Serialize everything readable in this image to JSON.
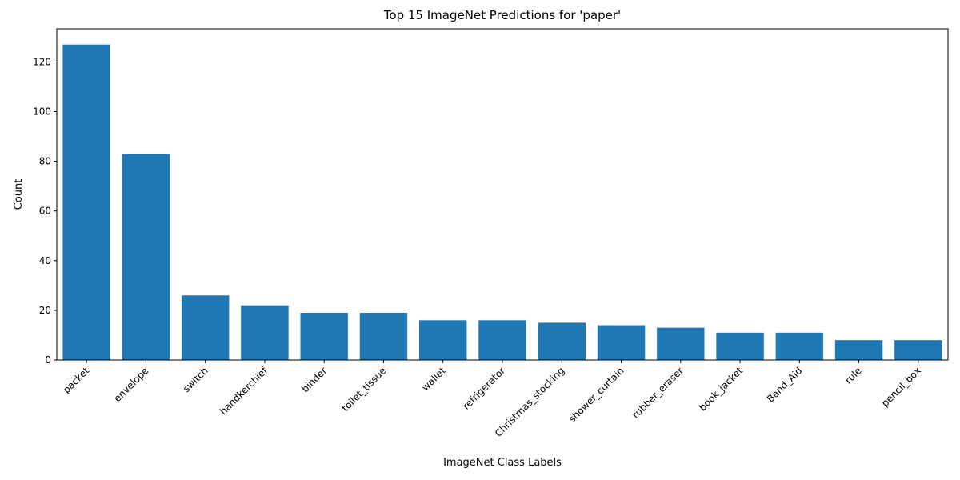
{
  "chart_data": {
    "type": "bar",
    "title": "Top 15 ImageNet Predictions for 'paper'",
    "xlabel": "ImageNet Class Labels",
    "ylabel": "Count",
    "categories": [
      "packet",
      "envelope",
      "switch",
      "handkerchief",
      "binder",
      "toilet_tissue",
      "wallet",
      "refrigerator",
      "Christmas_stocking",
      "shower_curtain",
      "rubber_eraser",
      "book_jacket",
      "Band_Aid",
      "rule",
      "pencil_box"
    ],
    "values": [
      127,
      83,
      26,
      22,
      19,
      19,
      16,
      16,
      15,
      14,
      13,
      11,
      11,
      8,
      8
    ],
    "ylim": [
      0,
      133.35
    ],
    "yticks": [
      0,
      20,
      40,
      60,
      80,
      100,
      120
    ],
    "bar_color": "#1f77b4",
    "grid": false,
    "legend": "none"
  }
}
